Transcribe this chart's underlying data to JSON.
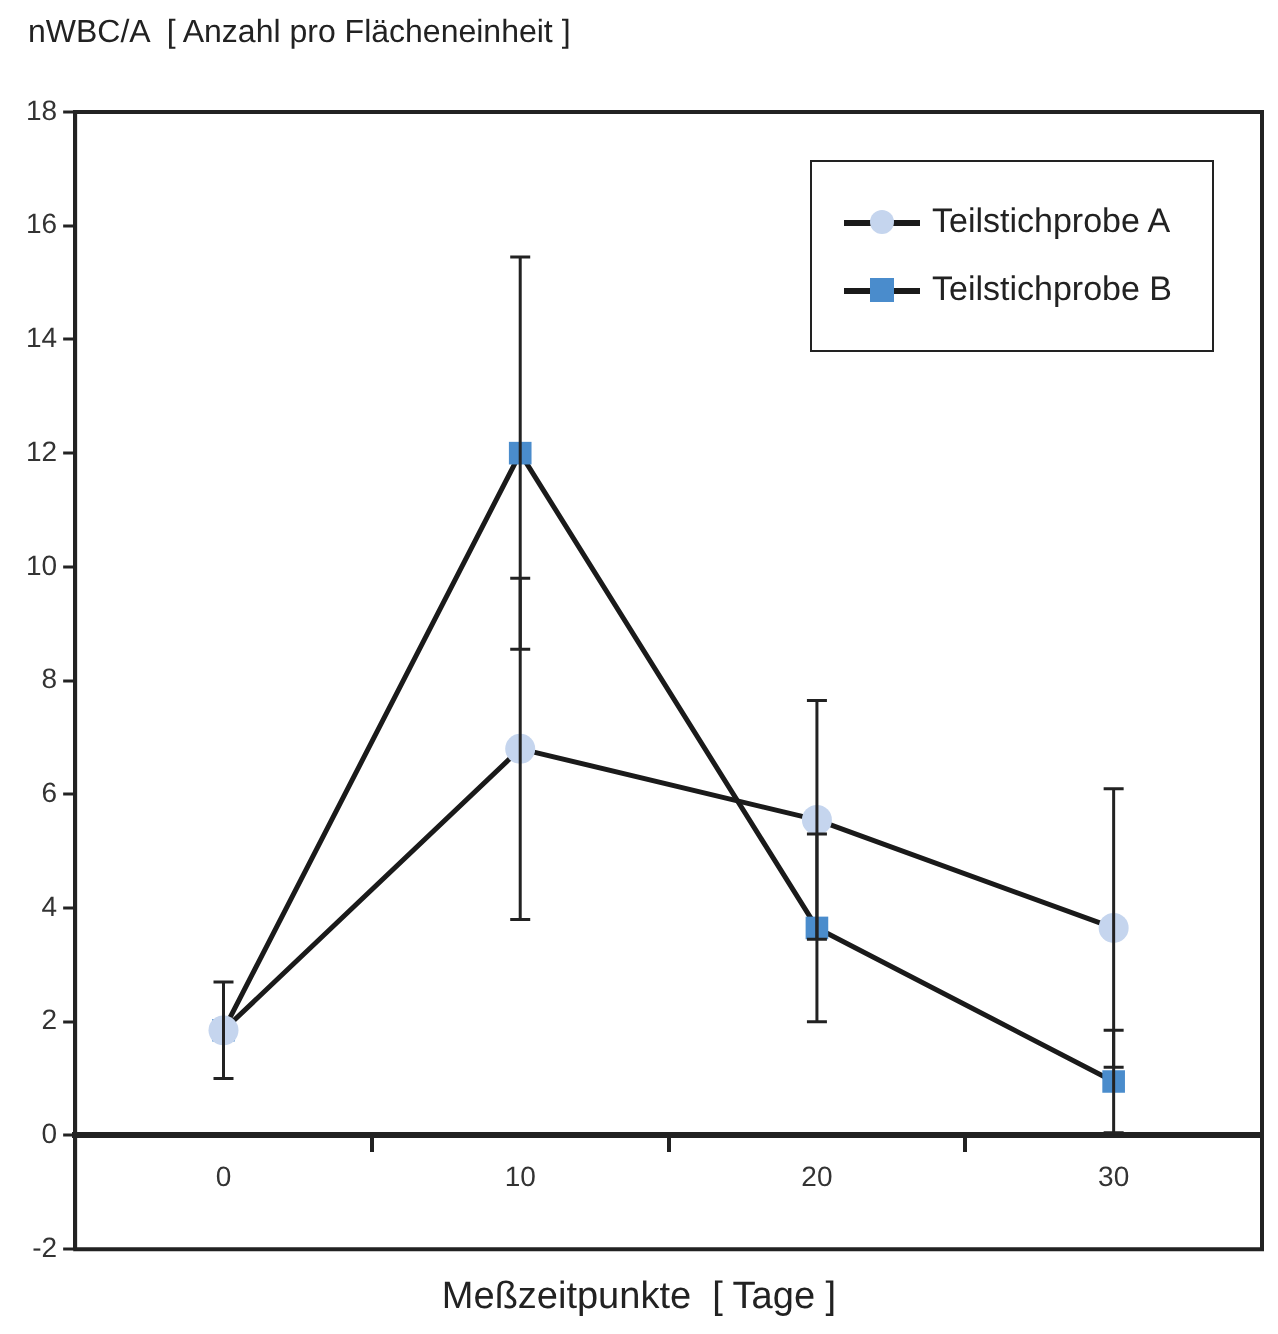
{
  "chart_data": {
    "type": "line",
    "ylabel": "nWBC/A  [ Anzahl pro Flächeneinheit ]",
    "xlabel": "Meßzeitpunkte  [ Tage ]",
    "categories": [
      "0",
      "10",
      "20",
      "30"
    ],
    "series": [
      {
        "name": "Teilstichprobe A",
        "color": "#c5d5ee",
        "marker": "circle",
        "values": [
          1.85,
          6.8,
          5.55,
          3.65
        ],
        "errors": [
          null,
          3.0,
          2.1,
          2.45
        ]
      },
      {
        "name": "Teilstichprobe B",
        "color": "#4a8ccc",
        "marker": "square",
        "values": [
          1.85,
          12.0,
          3.65,
          0.95
        ],
        "errors": [
          0.85,
          3.45,
          1.65,
          0.9
        ]
      }
    ],
    "ylim": [
      -2,
      18
    ],
    "yticks": [
      -2,
      0,
      2,
      4,
      6,
      8,
      10,
      12,
      14,
      16,
      18
    ],
    "grid": false,
    "legend": "top right",
    "line_style": "solid"
  }
}
